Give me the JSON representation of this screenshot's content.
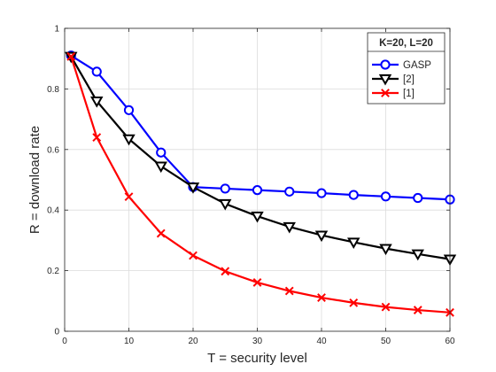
{
  "chart_data": {
    "type": "line",
    "xlabel": "T = security level",
    "ylabel": "R = download rate",
    "xlim": [
      0,
      60
    ],
    "ylim": [
      0,
      1
    ],
    "xticks": [
      0,
      10,
      20,
      30,
      40,
      50,
      60
    ],
    "yticks": [
      0,
      0.2,
      0.4,
      0.6,
      0.8,
      1
    ],
    "grid": true,
    "legend": {
      "title": "K=20, L=20",
      "placement": "top-right"
    },
    "series": [
      {
        "name": "GASP",
        "color": "#0000ff",
        "marker": "circle",
        "x": [
          1,
          5,
          10,
          15,
          20,
          25,
          30,
          35,
          40,
          45,
          50,
          55,
          60
        ],
        "values": [
          0.91,
          0.857,
          0.73,
          0.59,
          0.476,
          0.471,
          0.466,
          0.461,
          0.456,
          0.45,
          0.445,
          0.44,
          0.435
        ]
      },
      {
        "name": "[2]",
        "color": "#000000",
        "marker": "triangle-down",
        "x": [
          1,
          5,
          10,
          15,
          20,
          25,
          30,
          35,
          40,
          45,
          50,
          55,
          60
        ],
        "values": [
          0.907,
          0.76,
          0.635,
          0.545,
          0.476,
          0.421,
          0.38,
          0.345,
          0.317,
          0.294,
          0.273,
          0.255,
          0.238
        ]
      },
      {
        "name": "[1]",
        "color": "#ff0000",
        "marker": "x",
        "x": [
          1,
          5,
          10,
          15,
          20,
          25,
          30,
          35,
          40,
          45,
          50,
          55,
          60
        ],
        "values": [
          0.907,
          0.64,
          0.444,
          0.323,
          0.25,
          0.198,
          0.161,
          0.133,
          0.111,
          0.094,
          0.08,
          0.07,
          0.062
        ]
      }
    ]
  }
}
